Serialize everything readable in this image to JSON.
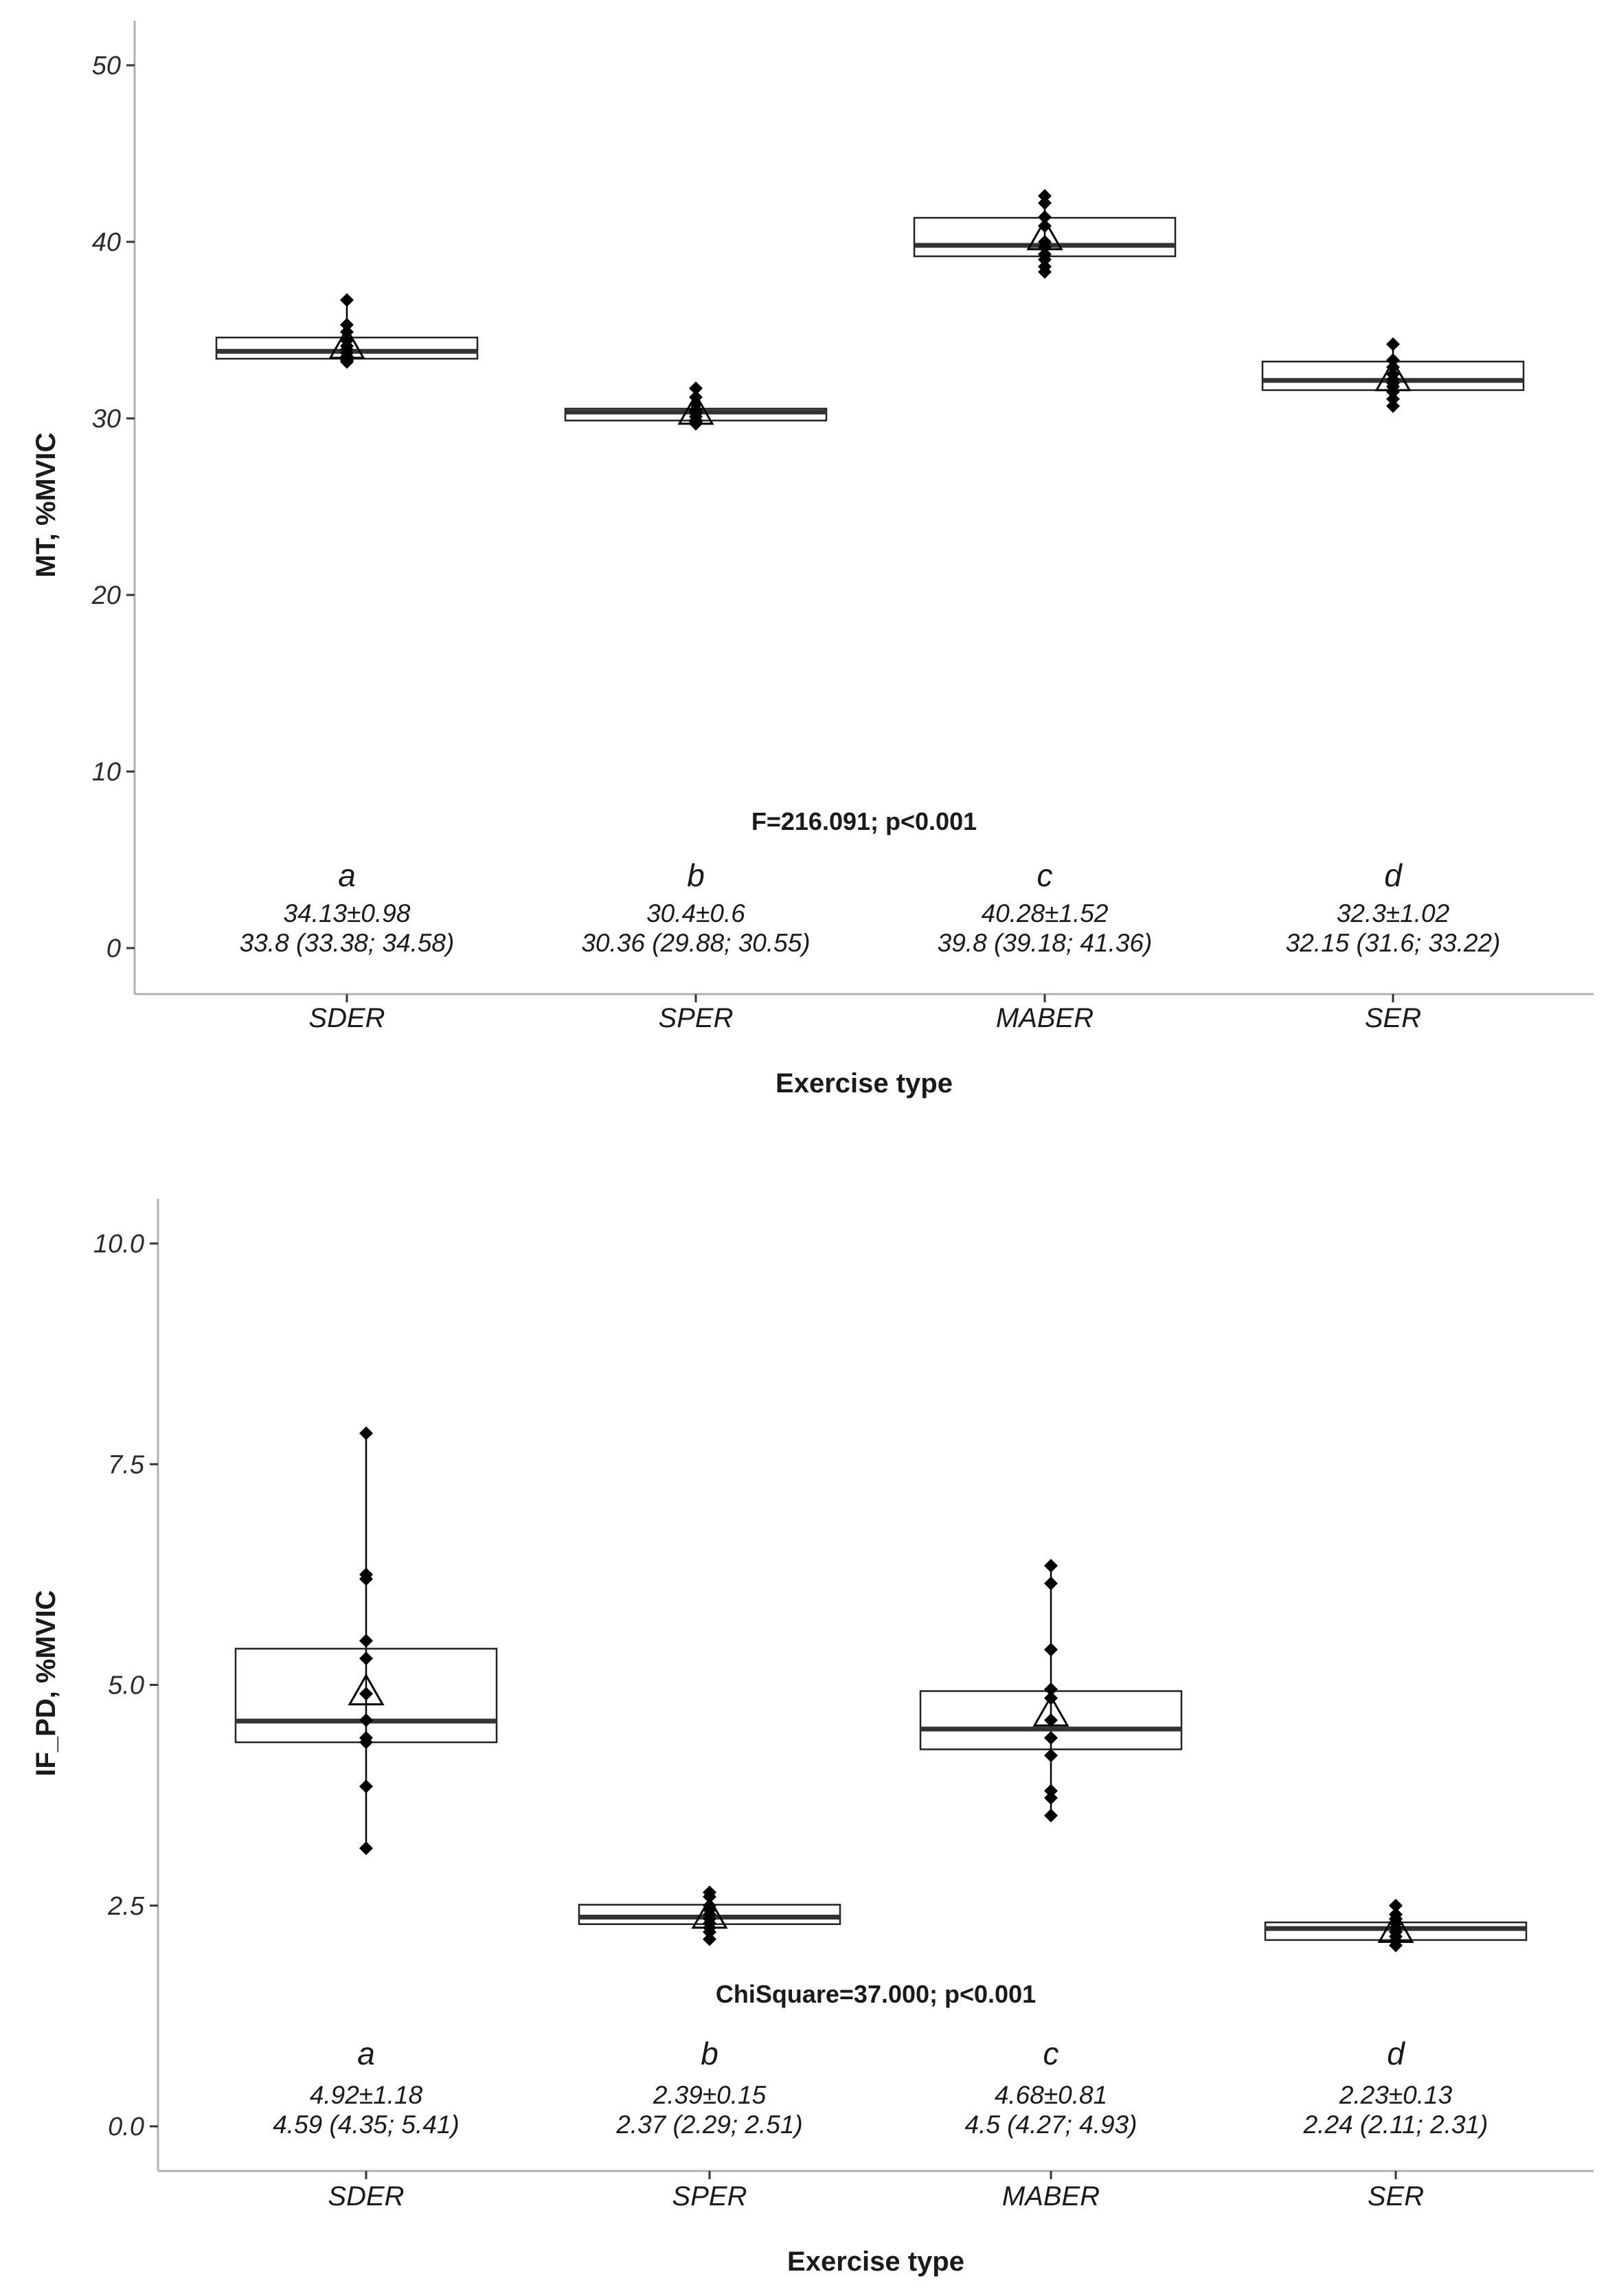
{
  "chart_data": [
    {
      "type": "box",
      "xlabel": "Exercise type",
      "ylabel": "MT, %MVIC",
      "ylim": [
        0,
        50
      ],
      "yticks": [
        0,
        10,
        20,
        30,
        40,
        50
      ],
      "ytick_labels": [
        "0",
        "10",
        "20",
        "30",
        "40",
        "50"
      ],
      "statistic": "F=216.091; p<0.001",
      "categories": [
        "SDER",
        "SPER",
        "MABER",
        "SER"
      ],
      "groups": [
        {
          "category": "SDER",
          "letter": "a",
          "mean_sd": "34.13±0.98",
          "median_iqr": "33.8 (33.38; 34.58)",
          "mean": 34.13,
          "median": 33.8,
          "q1": 33.38,
          "q3": 34.58,
          "points": [
            36.7,
            35.3,
            34.9,
            34.4,
            34.1,
            33.9,
            33.7,
            33.5,
            33.3,
            33.2
          ]
        },
        {
          "category": "SPER",
          "letter": "b",
          "mean_sd": "30.4±0.6",
          "median_iqr": "30.36 (29.88; 30.55)",
          "mean": 30.4,
          "median": 30.36,
          "q1": 29.88,
          "q3": 30.55,
          "points": [
            31.7,
            31.2,
            30.8,
            30.5,
            30.4,
            30.3,
            30.1,
            29.9,
            29.8,
            29.7
          ]
        },
        {
          "category": "MABER",
          "letter": "c",
          "mean_sd": "40.28±1.52",
          "median_iqr": "39.8 (39.18; 41.36)",
          "mean": 40.28,
          "median": 39.8,
          "q1": 39.18,
          "q3": 41.36,
          "points": [
            42.6,
            42.2,
            41.4,
            40.9,
            40.0,
            39.7,
            39.3,
            39.0,
            38.6,
            38.3
          ]
        },
        {
          "category": "SER",
          "letter": "d",
          "mean_sd": "32.3±1.02",
          "median_iqr": "32.15 (31.6; 33.22)",
          "mean": 32.3,
          "median": 32.15,
          "q1": 31.6,
          "q3": 33.22,
          "points": [
            34.2,
            33.3,
            32.9,
            32.5,
            32.2,
            32.0,
            31.8,
            31.5,
            31.1,
            30.7
          ]
        }
      ]
    },
    {
      "type": "box",
      "xlabel": "Exercise type",
      "ylabel": "IF_PD, %MVIC",
      "ylim": [
        0,
        10
      ],
      "yticks": [
        0,
        2.5,
        5,
        7.5,
        10
      ],
      "ytick_labels": [
        "0.0",
        "2.5",
        "5.0",
        "7.5",
        "10.0"
      ],
      "statistic": "ChiSquare=37.000; p<0.001",
      "categories": [
        "SDER",
        "SPER",
        "MABER",
        "SER"
      ],
      "groups": [
        {
          "category": "SDER",
          "letter": "a",
          "mean_sd": "4.92±1.18",
          "median_iqr": "4.59 (4.35; 5.41)",
          "mean": 4.92,
          "median": 4.59,
          "q1": 4.35,
          "q3": 5.41,
          "points": [
            7.85,
            6.25,
            6.2,
            5.5,
            5.3,
            4.9,
            4.6,
            4.4,
            4.35,
            3.85,
            3.15
          ]
        },
        {
          "category": "SPER",
          "letter": "b",
          "mean_sd": "2.39±0.15",
          "median_iqr": "2.37 (2.29; 2.51)",
          "mean": 2.39,
          "median": 2.37,
          "q1": 2.29,
          "q3": 2.51,
          "points": [
            2.65,
            2.6,
            2.5,
            2.45,
            2.4,
            2.35,
            2.3,
            2.25,
            2.2,
            2.12
          ]
        },
        {
          "category": "MABER",
          "letter": "c",
          "mean_sd": "4.68±0.81",
          "median_iqr": "4.5 (4.27; 4.93)",
          "mean": 4.68,
          "median": 4.5,
          "q1": 4.27,
          "q3": 4.93,
          "points": [
            6.35,
            6.15,
            5.4,
            4.95,
            4.85,
            4.6,
            4.4,
            4.2,
            3.8,
            3.72,
            3.52
          ]
        },
        {
          "category": "SER",
          "letter": "d",
          "mean_sd": "2.23±0.13",
          "median_iqr": "2.24 (2.11; 2.31)",
          "mean": 2.23,
          "median": 2.24,
          "q1": 2.11,
          "q3": 2.31,
          "points": [
            2.5,
            2.4,
            2.35,
            2.3,
            2.25,
            2.2,
            2.15,
            2.1,
            2.05
          ]
        }
      ]
    }
  ]
}
